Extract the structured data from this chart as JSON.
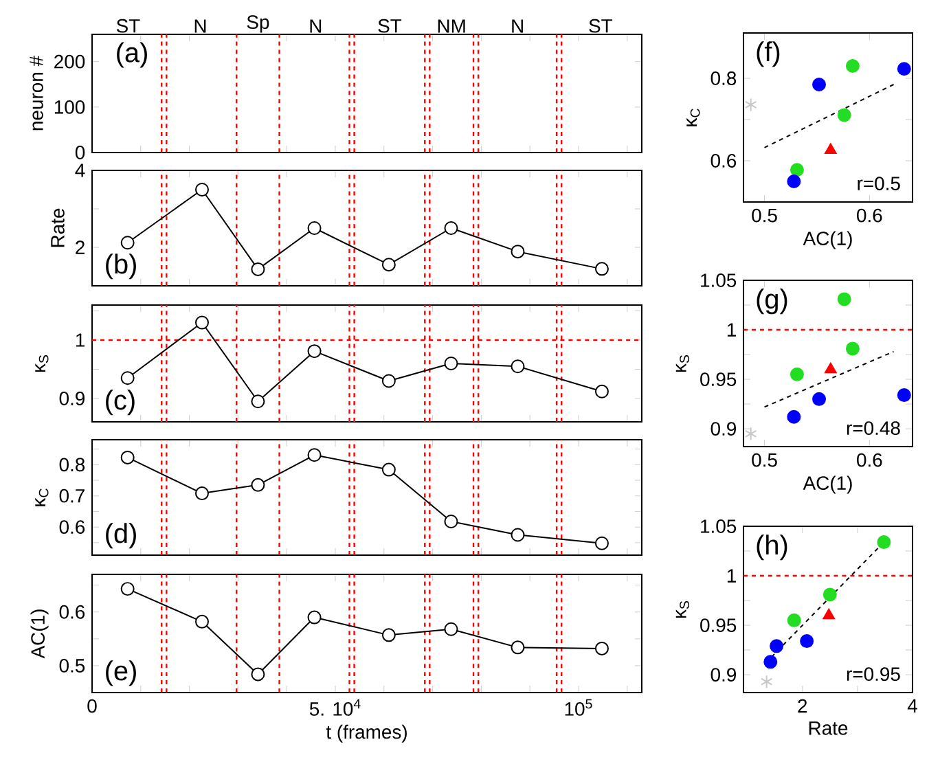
{
  "chart_data": [
    {
      "type": "scatter",
      "ylabel": "neuron #",
      "xlim": [
        0,
        113000
      ],
      "ylim": [
        0,
        260
      ],
      "yticks": [
        0,
        100,
        200
      ],
      "tick_labels": "y",
      "xticks": [
        0,
        {
          "value": 10000,
          "label": null
        },
        {
          "value": 20000,
          "label": null
        },
        {
          "value": 30000,
          "label": null
        },
        {
          "value": 40000,
          "label": null
        },
        {
          "value": 50000,
          "label": null
        },
        {
          "value": 60000,
          "label": null
        },
        {
          "value": 70000,
          "label": null
        },
        {
          "value": 80000,
          "label": null
        },
        {
          "value": 90000,
          "label": null
        },
        {
          "value": 100000,
          "label": null
        },
        {
          "value": 110000,
          "label": null
        }
      ],
      "ref_lines": [
        {
          "axis": "x",
          "value": 14300,
          "color": "#ff0000",
          "line_style": "dashed"
        },
        {
          "axis": "x",
          "value": 15300,
          "color": "#ff0000",
          "line_style": "dashed"
        },
        {
          "axis": "x",
          "value": 29700,
          "color": "#ff0000",
          "line_style": "dashed"
        },
        {
          "axis": "x",
          "value": 38500,
          "color": "#ff0000",
          "line_style": "dashed"
        },
        {
          "axis": "x",
          "value": 52900,
          "color": "#ff0000",
          "line_style": "dashed"
        },
        {
          "axis": "x",
          "value": 53900,
          "color": "#ff0000",
          "line_style": "dashed"
        },
        {
          "axis": "x",
          "value": 68400,
          "color": "#ff0000",
          "line_style": "dashed"
        },
        {
          "axis": "x",
          "value": 69400,
          "color": "#ff0000",
          "line_style": "dashed"
        },
        {
          "axis": "x",
          "value": 78400,
          "color": "#ff0000",
          "line_style": "dashed"
        },
        {
          "axis": "x",
          "value": 79400,
          "color": "#ff0000",
          "line_style": "dashed"
        },
        {
          "axis": "x",
          "value": 95500,
          "color": "#ff0000",
          "line_style": "dashed"
        },
        {
          "axis": "x",
          "value": 96500,
          "color": "#ff0000",
          "line_style": "dashed"
        }
      ],
      "annotations": [
        "(a)",
        "ST",
        "N",
        "Sp",
        "N",
        "ST",
        "NM",
        "N",
        "ST"
      ]
    },
    {
      "type": "line",
      "ylabel": "Rate",
      "xlim": [
        0,
        113000
      ],
      "ylim": [
        1,
        4
      ],
      "yticks": [
        2,
        {
          "value": 3,
          "label": null
        },
        4
      ],
      "tick_labels": "y",
      "marker": "circle",
      "xticks": [
        0,
        {
          "value": 10000,
          "label": null
        },
        {
          "value": 20000,
          "label": null
        },
        {
          "value": 30000,
          "label": null
        },
        {
          "value": 40000,
          "label": null
        },
        {
          "value": 50000,
          "label": null
        },
        {
          "value": 60000,
          "label": null
        },
        {
          "value": 70000,
          "label": null
        },
        {
          "value": 80000,
          "label": null
        },
        {
          "value": 90000,
          "label": null
        },
        {
          "value": 100000,
          "label": null
        },
        {
          "value": 110000,
          "label": null
        }
      ],
      "x": [
        7300,
        22600,
        34100,
        45700,
        61000,
        73800,
        87500,
        104800
      ],
      "series": [
        {
          "color": "#000000",
          "values": [
            2.12,
            3.5,
            1.43,
            2.5,
            1.55,
            2.5,
            1.89,
            1.44
          ]
        }
      ],
      "ref_lines": [
        {
          "axis": "x",
          "value": 14300,
          "color": "#ff0000",
          "line_style": "dashed"
        },
        {
          "axis": "x",
          "value": 15300,
          "color": "#ff0000",
          "line_style": "dashed"
        },
        {
          "axis": "x",
          "value": 29700,
          "color": "#ff0000",
          "line_style": "dashed"
        },
        {
          "axis": "x",
          "value": 38500,
          "color": "#ff0000",
          "line_style": "dashed"
        },
        {
          "axis": "x",
          "value": 52900,
          "color": "#ff0000",
          "line_style": "dashed"
        },
        {
          "axis": "x",
          "value": 53900,
          "color": "#ff0000",
          "line_style": "dashed"
        },
        {
          "axis": "x",
          "value": 68400,
          "color": "#ff0000",
          "line_style": "dashed"
        },
        {
          "axis": "x",
          "value": 69400,
          "color": "#ff0000",
          "line_style": "dashed"
        },
        {
          "axis": "x",
          "value": 78400,
          "color": "#ff0000",
          "line_style": "dashed"
        },
        {
          "axis": "x",
          "value": 79400,
          "color": "#ff0000",
          "line_style": "dashed"
        },
        {
          "axis": "x",
          "value": 95500,
          "color": "#ff0000",
          "line_style": "dashed"
        },
        {
          "axis": "x",
          "value": 96500,
          "color": "#ff0000",
          "line_style": "dashed"
        }
      ],
      "annotations": [
        "(b)"
      ]
    },
    {
      "type": "line",
      "ylabel": "κ$_{S}$",
      "xlim": [
        0,
        113000
      ],
      "ylim": [
        0.86,
        1.06
      ],
      "yticks": [
        0.9,
        {
          "value": 0.95,
          "label": null
        },
        1,
        {
          "value": 1.05,
          "label": null
        }
      ],
      "tick_labels": "y",
      "marker": "circle",
      "xticks": [
        0,
        {
          "value": 10000,
          "label": null
        },
        {
          "value": 20000,
          "label": null
        },
        {
          "value": 30000,
          "label": null
        },
        {
          "value": 40000,
          "label": null
        },
        {
          "value": 50000,
          "label": null
        },
        {
          "value": 60000,
          "label": null
        },
        {
          "value": 70000,
          "label": null
        },
        {
          "value": 80000,
          "label": null
        },
        {
          "value": 90000,
          "label": null
        },
        {
          "value": 100000,
          "label": null
        },
        {
          "value": 110000,
          "label": null
        }
      ],
      "x": [
        7300,
        22600,
        34100,
        45700,
        61000,
        73800,
        87500,
        104800
      ],
      "series": [
        {
          "color": "#000000",
          "values": [
            0.935,
            1.03,
            0.895,
            0.981,
            0.93,
            0.96,
            0.955,
            0.912
          ]
        }
      ],
      "ref_lines": [
        {
          "axis": "y",
          "value": 1,
          "color": "#ff0000",
          "line_style": "dashed"
        },
        {
          "axis": "x",
          "value": 14300,
          "color": "#ff0000",
          "line_style": "dashed"
        },
        {
          "axis": "x",
          "value": 15300,
          "color": "#ff0000",
          "line_style": "dashed"
        },
        {
          "axis": "x",
          "value": 29700,
          "color": "#ff0000",
          "line_style": "dashed"
        },
        {
          "axis": "x",
          "value": 38500,
          "color": "#ff0000",
          "line_style": "dashed"
        },
        {
          "axis": "x",
          "value": 52900,
          "color": "#ff0000",
          "line_style": "dashed"
        },
        {
          "axis": "x",
          "value": 53900,
          "color": "#ff0000",
          "line_style": "dashed"
        },
        {
          "axis": "x",
          "value": 68400,
          "color": "#ff0000",
          "line_style": "dashed"
        },
        {
          "axis": "x",
          "value": 69400,
          "color": "#ff0000",
          "line_style": "dashed"
        },
        {
          "axis": "x",
          "value": 78400,
          "color": "#ff0000",
          "line_style": "dashed"
        },
        {
          "axis": "x",
          "value": 79400,
          "color": "#ff0000",
          "line_style": "dashed"
        },
        {
          "axis": "x",
          "value": 95500,
          "color": "#ff0000",
          "line_style": "dashed"
        },
        {
          "axis": "x",
          "value": 96500,
          "color": "#ff0000",
          "line_style": "dashed"
        }
      ],
      "annotations": [
        "(c)"
      ]
    },
    {
      "type": "line",
      "ylabel": "κ$_{C}$",
      "xlim": [
        0,
        113000
      ],
      "ylim": [
        0.51,
        0.88
      ],
      "yticks": [
        {
          "value": 0.55,
          "label": null
        },
        0.6,
        {
          "value": 0.65,
          "label": null
        },
        0.7,
        {
          "value": 0.75,
          "label": null
        },
        0.8,
        {
          "value": 0.85,
          "label": null
        }
      ],
      "tick_labels": "y",
      "marker": "circle",
      "xticks": [
        0,
        {
          "value": 10000,
          "label": null
        },
        {
          "value": 20000,
          "label": null
        },
        {
          "value": 30000,
          "label": null
        },
        {
          "value": 40000,
          "label": null
        },
        {
          "value": 50000,
          "label": null
        },
        {
          "value": 60000,
          "label": null
        },
        {
          "value": 70000,
          "label": null
        },
        {
          "value": 80000,
          "label": null
        },
        {
          "value": 90000,
          "label": null
        },
        {
          "value": 100000,
          "label": null
        },
        {
          "value": 110000,
          "label": null
        }
      ],
      "x": [
        7300,
        22600,
        34100,
        45700,
        61000,
        73800,
        87500,
        104800
      ],
      "series": [
        {
          "color": "#000000",
          "values": [
            0.823,
            0.708,
            0.735,
            0.831,
            0.784,
            0.618,
            0.575,
            0.548
          ]
        }
      ],
      "ref_lines": [
        {
          "axis": "x",
          "value": 14300,
          "color": "#ff0000",
          "line_style": "dashed"
        },
        {
          "axis": "x",
          "value": 15300,
          "color": "#ff0000",
          "line_style": "dashed"
        },
        {
          "axis": "x",
          "value": 29700,
          "color": "#ff0000",
          "line_style": "dashed"
        },
        {
          "axis": "x",
          "value": 38500,
          "color": "#ff0000",
          "line_style": "dashed"
        },
        {
          "axis": "x",
          "value": 52900,
          "color": "#ff0000",
          "line_style": "dashed"
        },
        {
          "axis": "x",
          "value": 53900,
          "color": "#ff0000",
          "line_style": "dashed"
        },
        {
          "axis": "x",
          "value": 68400,
          "color": "#ff0000",
          "line_style": "dashed"
        },
        {
          "axis": "x",
          "value": 69400,
          "color": "#ff0000",
          "line_style": "dashed"
        },
        {
          "axis": "x",
          "value": 78400,
          "color": "#ff0000",
          "line_style": "dashed"
        },
        {
          "axis": "x",
          "value": 79400,
          "color": "#ff0000",
          "line_style": "dashed"
        },
        {
          "axis": "x",
          "value": 95500,
          "color": "#ff0000",
          "line_style": "dashed"
        },
        {
          "axis": "x",
          "value": 96500,
          "color": "#ff0000",
          "line_style": "dashed"
        }
      ],
      "annotations": [
        "(d)"
      ]
    },
    {
      "type": "line",
      "ylabel": "AC(1)",
      "xlabel": "t (frames)",
      "xlim": [
        0,
        113000
      ],
      "ylim": [
        0.45,
        0.67
      ],
      "yticks": [
        0.5,
        {
          "value": 0.55,
          "label": null
        },
        0.6,
        {
          "value": 0.65,
          "label": null
        }
      ],
      "marker": "circle",
      "xticks": [
        0,
        {
          "value": 10000,
          "label": null
        },
        {
          "value": 20000,
          "label": null
        },
        {
          "value": 30000,
          "label": null
        },
        {
          "value": 40000,
          "label": null
        },
        {
          "value": 50000,
          "label": "5. 10$^{4}$"
        },
        {
          "value": 60000,
          "label": null
        },
        {
          "value": 70000,
          "label": null
        },
        {
          "value": 80000,
          "label": null
        },
        {
          "value": 90000,
          "label": null
        },
        {
          "value": 100000,
          "label": "10$^{5}$"
        },
        {
          "value": 110000,
          "label": null
        }
      ],
      "x": [
        7300,
        22600,
        34100,
        45700,
        61000,
        73800,
        87500,
        104800
      ],
      "series": [
        {
          "color": "#000000",
          "values": [
            0.643,
            0.582,
            0.484,
            0.59,
            0.557,
            0.568,
            0.534,
            0.532
          ]
        }
      ],
      "ref_lines": [
        {
          "axis": "x",
          "value": 14300,
          "color": "#ff0000",
          "line_style": "dashed"
        },
        {
          "axis": "x",
          "value": 15300,
          "color": "#ff0000",
          "line_style": "dashed"
        },
        {
          "axis": "x",
          "value": 29700,
          "color": "#ff0000",
          "line_style": "dashed"
        },
        {
          "axis": "x",
          "value": 38500,
          "color": "#ff0000",
          "line_style": "dashed"
        },
        {
          "axis": "x",
          "value": 52900,
          "color": "#ff0000",
          "line_style": "dashed"
        },
        {
          "axis": "x",
          "value": 53900,
          "color": "#ff0000",
          "line_style": "dashed"
        },
        {
          "axis": "x",
          "value": 68400,
          "color": "#ff0000",
          "line_style": "dashed"
        },
        {
          "axis": "x",
          "value": 69400,
          "color": "#ff0000",
          "line_style": "dashed"
        },
        {
          "axis": "x",
          "value": 78400,
          "color": "#ff0000",
          "line_style": "dashed"
        },
        {
          "axis": "x",
          "value": 79400,
          "color": "#ff0000",
          "line_style": "dashed"
        },
        {
          "axis": "x",
          "value": 95500,
          "color": "#ff0000",
          "line_style": "dashed"
        },
        {
          "axis": "x",
          "value": 96500,
          "color": "#ff0000",
          "line_style": "dashed"
        }
      ],
      "annotations": [
        "(e)"
      ]
    },
    {
      "type": "scatter",
      "xlabel": "AC(1)",
      "ylabel": "κ$_{C}$",
      "xlim": [
        0.48,
        0.641
      ],
      "ylim": [
        0.5,
        0.91
      ],
      "xticks": [
        0.5,
        0.6
      ],
      "yticks": [
        0.6,
        {
          "value": 0.7,
          "label": null
        },
        0.8
      ],
      "series": [
        {
          "color": "#22dd22",
          "marker": "circle",
          "x": [
            0.584,
            0.576,
            0.531
          ],
          "values": [
            0.83,
            0.711,
            0.578
          ]
        },
        {
          "color": "#0000ff",
          "marker": "circle",
          "x": [
            0.633,
            0.552,
            0.528
          ],
          "values": [
            0.823,
            0.785,
            0.55
          ]
        },
        {
          "color": "#ff0000",
          "marker": "triangle",
          "x": [
            0.563
          ],
          "values": [
            0.626
          ]
        },
        {
          "color": "#c8c8c8",
          "marker": "cross",
          "x": [
            0.487
          ],
          "values": [
            0.736
          ]
        },
        {
          "type": "line",
          "color": "#000000",
          "marker": "none",
          "line_style": "dashed",
          "x": [
            0.5,
            0.623
          ],
          "values": [
            0.632,
            0.785
          ]
        }
      ],
      "annotations": [
        "(f)",
        "r=0.5"
      ]
    },
    {
      "type": "scatter",
      "xlabel": "AC(1)",
      "ylabel": "κ$_{S}$",
      "xlim": [
        0.48,
        0.641
      ],
      "ylim": [
        0.882,
        1.05
      ],
      "xticks": [
        0.5,
        0.6
      ],
      "yticks": [
        0.9,
        {
          "value": 0.925,
          "label": null
        },
        0.95,
        {
          "value": 0.975,
          "label": null
        },
        1,
        {
          "value": 1.025,
          "label": null
        },
        1.05
      ],
      "series": [
        {
          "color": "#22dd22",
          "marker": "circle",
          "x": [
            0.576,
            0.584,
            0.531
          ],
          "values": [
            1.031,
            0.981,
            0.955
          ]
        },
        {
          "color": "#0000ff",
          "marker": "circle",
          "x": [
            0.552,
            0.528,
            0.633
          ],
          "values": [
            0.93,
            0.912,
            0.934
          ]
        },
        {
          "color": "#ff0000",
          "marker": "triangle",
          "x": [
            0.563
          ],
          "values": [
            0.96
          ]
        },
        {
          "color": "#c8c8c8",
          "marker": "cross",
          "x": [
            0.487
          ],
          "values": [
            0.895
          ]
        },
        {
          "type": "line",
          "color": "#000000",
          "marker": "none",
          "line_style": "dashed",
          "x": [
            0.5,
            0.623
          ],
          "values": [
            0.922,
            0.978
          ]
        }
      ],
      "ref_lines": [
        {
          "axis": "y",
          "value": 1,
          "color": "#ff0000",
          "line_style": "dashed"
        }
      ],
      "annotations": [
        "(g)",
        "r=0.48"
      ]
    },
    {
      "type": "scatter",
      "xlabel": "Rate",
      "ylabel": "κ$_{S}$",
      "xlim": [
        0.93,
        4
      ],
      "ylim": [
        0.882,
        1.05
      ],
      "xticks": [
        2,
        {
          "value": 3,
          "label": null
        },
        4
      ],
      "yticks": [
        0.9,
        {
          "value": 0.925,
          "label": null
        },
        0.95,
        {
          "value": 0.975,
          "label": null
        },
        1,
        {
          "value": 1.025,
          "label": null
        },
        1.05
      ],
      "series": [
        {
          "color": "#22dd22",
          "marker": "circle",
          "x": [
            3.48,
            2.5,
            1.85
          ],
          "values": [
            1.034,
            0.981,
            0.955
          ]
        },
        {
          "color": "#0000ff",
          "marker": "circle",
          "x": [
            2.08,
            1.53,
            1.42
          ],
          "values": [
            0.934,
            0.929,
            0.913
          ]
        },
        {
          "color": "#ff0000",
          "marker": "triangle",
          "x": [
            2.48
          ],
          "values": [
            0.96
          ]
        },
        {
          "color": "#c8c8c8",
          "marker": "cross",
          "x": [
            1.35
          ],
          "values": [
            0.893
          ]
        },
        {
          "type": "line",
          "color": "#000000",
          "marker": "none",
          "line_style": "dashed",
          "x": [
            1.44,
            3.48
          ],
          "values": [
            0.918,
            1.034
          ]
        }
      ],
      "ref_lines": [
        {
          "axis": "y",
          "value": 1,
          "color": "#ff0000",
          "line_style": "dashed"
        }
      ],
      "annotations": [
        "(h)",
        "r=0.95"
      ]
    }
  ]
}
